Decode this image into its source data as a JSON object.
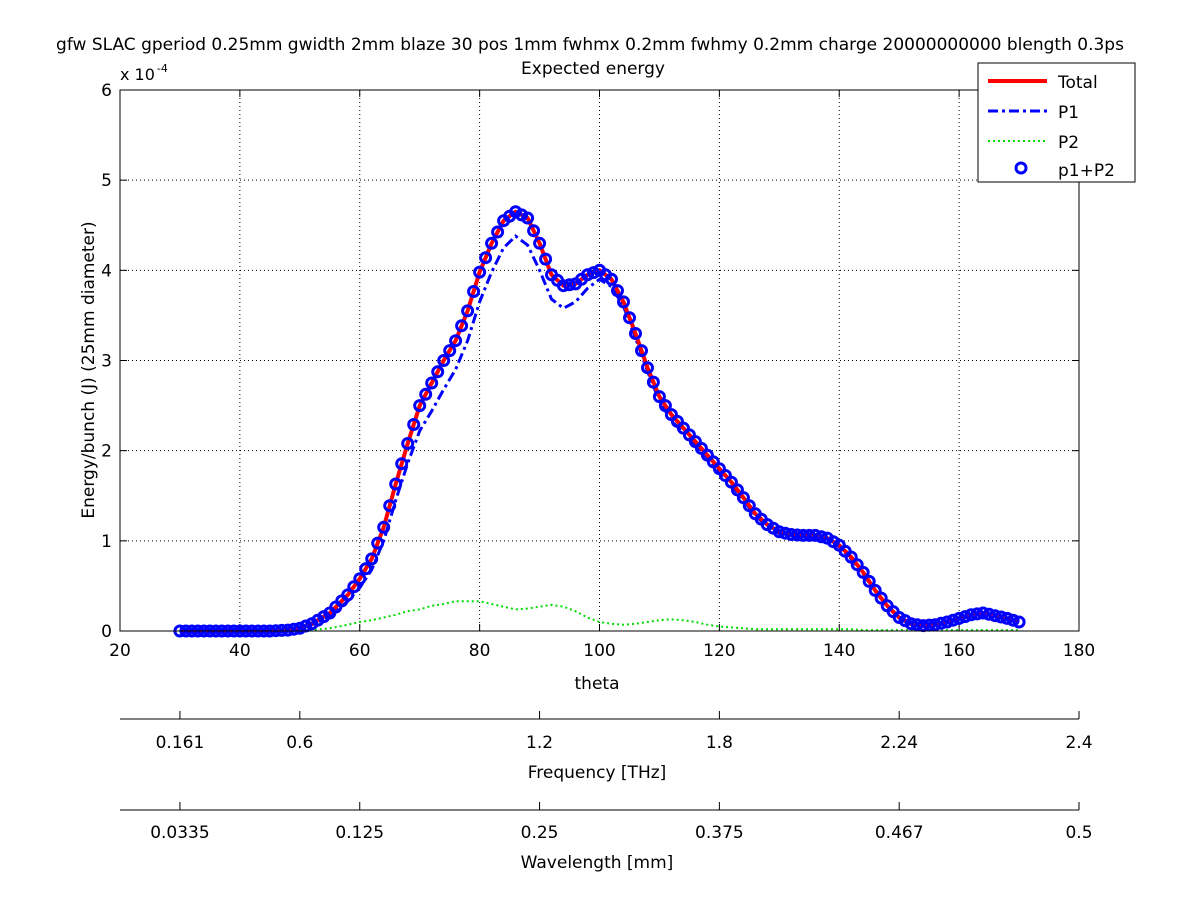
{
  "chart_data": {
    "type": "line",
    "title": "gfw SLAC gperiod 0.25mm gwidth 2mm blaze 30 pos 1mm fwhmx 0.2mm fwhmy 0.2mm charge 20000000000 blength 0.3ps",
    "subtitle": "Expected energy",
    "xlabel": "theta",
    "ylabel": "Energy/bunch (J) (25mm diameter)",
    "y_exponent_label": "x 10",
    "y_exponent": "-4",
    "xlim": [
      20,
      180
    ],
    "ylim": [
      0,
      6
    ],
    "x_ticks": [
      "20",
      "40",
      "60",
      "80",
      "100",
      "120",
      "140",
      "160",
      "180"
    ],
    "y_ticks": [
      "0",
      "1",
      "2",
      "3",
      "4",
      "5",
      "6"
    ],
    "grid": true,
    "legend_position": "top-right",
    "theta": [
      30,
      40,
      45,
      48,
      50,
      52,
      55,
      58,
      60,
      62,
      64,
      66,
      68,
      70,
      72,
      74,
      76,
      78,
      80,
      82,
      84,
      86,
      88,
      90,
      92,
      94,
      96,
      98,
      100,
      102,
      104,
      106,
      108,
      110,
      112,
      114,
      116,
      118,
      120,
      122,
      124,
      126,
      128,
      130,
      132,
      134,
      136,
      138,
      140,
      142,
      144,
      146,
      148,
      150,
      152,
      154,
      156,
      158,
      160,
      162,
      164,
      166,
      168,
      170
    ],
    "series": [
      {
        "name": "Total",
        "color": "#ff0000",
        "style": "solid",
        "values": [
          0,
          0,
          0,
          0.01,
          0.03,
          0.08,
          0.2,
          0.4,
          0.58,
          0.8,
          1.15,
          1.63,
          2.08,
          2.5,
          2.75,
          3.0,
          3.22,
          3.55,
          3.98,
          4.3,
          4.55,
          4.65,
          4.58,
          4.3,
          3.95,
          3.83,
          3.85,
          3.95,
          4.0,
          3.9,
          3.65,
          3.3,
          2.92,
          2.6,
          2.4,
          2.25,
          2.1,
          1.95,
          1.8,
          1.65,
          1.48,
          1.3,
          1.18,
          1.1,
          1.07,
          1.06,
          1.06,
          1.03,
          0.95,
          0.82,
          0.65,
          0.45,
          0.28,
          0.15,
          0.08,
          0.06,
          0.07,
          0.1,
          0.14,
          0.18,
          0.2,
          0.17,
          0.14,
          0.1
        ]
      },
      {
        "name": "P1",
        "color": "#0000ff",
        "style": "dashdot",
        "values": [
          0,
          0,
          0,
          0.01,
          0.03,
          0.07,
          0.17,
          0.33,
          0.48,
          0.68,
          1.0,
          1.45,
          1.86,
          2.22,
          2.44,
          2.68,
          2.9,
          3.22,
          3.65,
          3.98,
          4.25,
          4.38,
          4.28,
          4.0,
          3.68,
          3.58,
          3.65,
          3.8,
          3.9,
          3.82,
          3.6,
          3.25,
          2.88,
          2.55,
          2.33,
          2.2,
          2.06,
          1.92,
          1.76,
          1.62,
          1.45,
          1.28,
          1.16,
          1.08,
          1.05,
          1.04,
          1.04,
          1.01,
          0.93,
          0.8,
          0.63,
          0.44,
          0.27,
          0.14,
          0.07,
          0.05,
          0.06,
          0.09,
          0.13,
          0.17,
          0.19,
          0.16,
          0.13,
          0.09
        ]
      },
      {
        "name": "P2",
        "color": "#00dd00",
        "style": "dotted",
        "values": [
          0,
          0,
          0,
          0,
          0,
          0.01,
          0.03,
          0.07,
          0.1,
          0.12,
          0.15,
          0.18,
          0.22,
          0.24,
          0.28,
          0.3,
          0.33,
          0.33,
          0.33,
          0.3,
          0.27,
          0.24,
          0.25,
          0.27,
          0.29,
          0.27,
          0.22,
          0.15,
          0.1,
          0.08,
          0.07,
          0.08,
          0.1,
          0.12,
          0.13,
          0.12,
          0.1,
          0.07,
          0.05,
          0.04,
          0.03,
          0.02,
          0.02,
          0.02,
          0.02,
          0.02,
          0.02,
          0.02,
          0.02,
          0.02,
          0.01,
          0.01,
          0.01,
          0.01,
          0.01,
          0.01,
          0.01,
          0.01,
          0.01,
          0.01,
          0.01,
          0.01,
          0.01,
          0.01
        ]
      },
      {
        "name": "p1+P2",
        "color": "#0000ff",
        "style": "markers"
      }
    ],
    "freq_axis": {
      "label": "Frequency [THz]",
      "ticks": [
        {
          "theta": 30,
          "label": "0.161"
        },
        {
          "theta": 50,
          "label": "0.6"
        },
        {
          "theta": 90,
          "label": "1.2"
        },
        {
          "theta": 120,
          "label": "1.8"
        },
        {
          "theta": 150,
          "label": "2.24"
        },
        {
          "theta": 180,
          "label": "2.4"
        }
      ]
    },
    "wave_axis": {
      "label": "Wavelength [mm]",
      "ticks": [
        {
          "theta": 30,
          "label": "0.0335"
        },
        {
          "theta": 60,
          "label": "0.125"
        },
        {
          "theta": 90,
          "label": "0.25"
        },
        {
          "theta": 120,
          "label": "0.375"
        },
        {
          "theta": 150,
          "label": "0.467"
        },
        {
          "theta": 180,
          "label": "0.5"
        }
      ]
    }
  }
}
